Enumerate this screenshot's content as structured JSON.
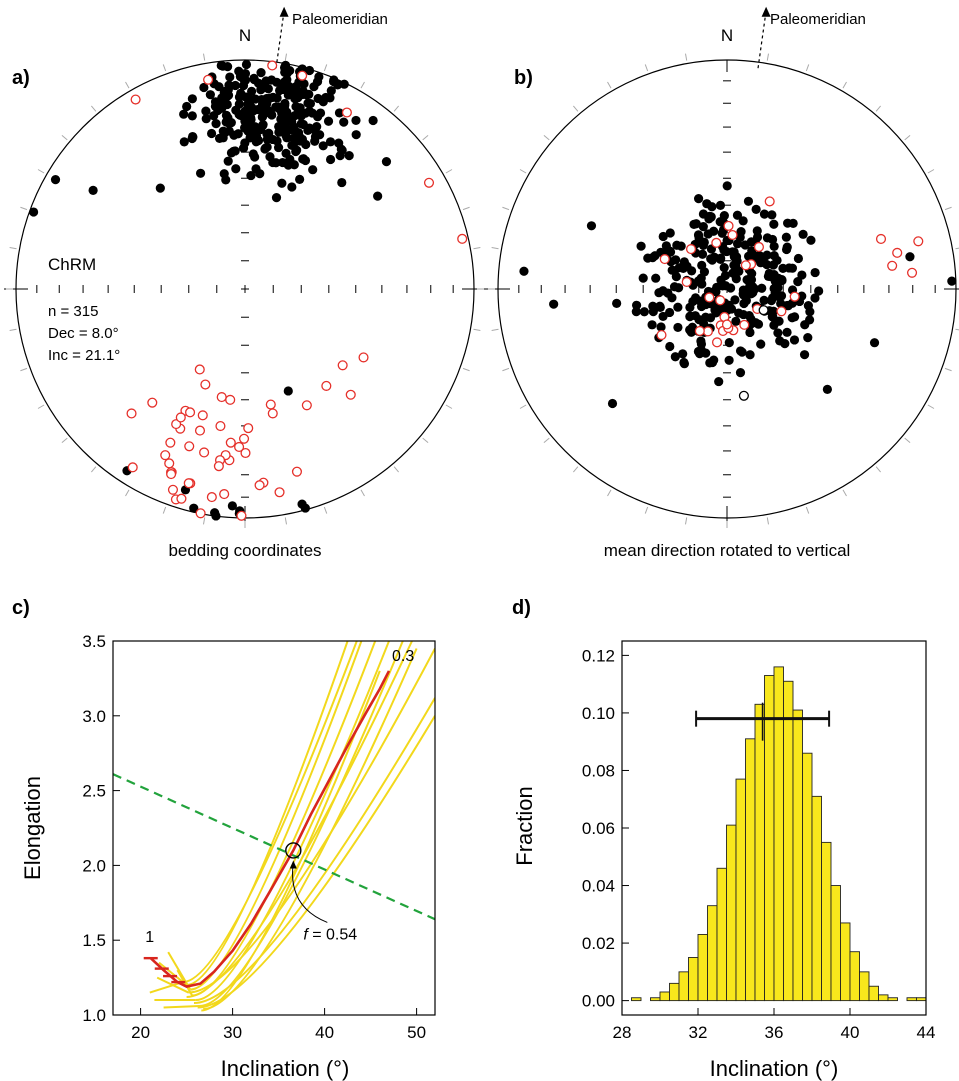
{
  "chart_data": [
    {
      "panel": "a)",
      "type": "scatter",
      "projection": "equal-area stereonet",
      "north_label": "N",
      "reference_label": "Paleomeridian",
      "caption": "bedding coordinates",
      "group_label": "ChRM",
      "stats": [
        "n = 315",
        "Dec = 8.0°",
        "Inc = 21.1°"
      ],
      "legend": "none",
      "series": [
        {
          "symbol": "filled",
          "color": "#000000",
          "cluster": {
            "dec": 8.0,
            "inc": 21.1,
            "n": 300,
            "seed": 11
          },
          "points": [
            {
              "dec": 300,
              "inc": 5
            },
            {
              "dec": 290,
              "inc": 2
            },
            {
              "dec": 303,
              "inc": 22
            },
            {
              "dec": 320,
              "inc": 42
            },
            {
              "dec": 339,
              "inc": 45
            },
            {
              "dec": 350,
              "inc": 50
            },
            {
              "dec": 48,
              "inc": 18
            },
            {
              "dec": 55,
              "inc": 30
            },
            {
              "dec": 157,
              "inc": 50
            },
            {
              "dec": 213,
              "inc": 6
            }
          ]
        },
        {
          "symbol": "open",
          "color": "#e5302a",
          "points": [
            {
              "dec": 60,
              "inc": 8
            },
            {
              "dec": 77,
              "inc": 3
            },
            {
              "dec": 330,
              "inc": 5
            },
            {
              "dec": 15,
              "inc": 4
            },
            {
              "dec": 350,
              "inc": 8
            },
            {
              "dec": 30,
              "inc": 12
            },
            {
              "dec": 120,
              "inc": 40
            },
            {
              "dec": 128,
              "inc": 45
            },
            {
              "dec": 135,
              "inc": 35
            },
            {
              "dec": 140,
              "inc": 44
            },
            {
              "dec": 152,
              "inc": 42
            }
          ],
          "cluster": {
            "dec": 190,
            "inc": 28,
            "n": 48,
            "seed": 23
          }
        }
      ]
    },
    {
      "panel": "b)",
      "type": "scatter",
      "projection": "equal-area stereonet",
      "north_label": "N",
      "reference_label": "Paleomeridian",
      "caption": "mean direction rotated to vertical",
      "legend": "none",
      "series": [
        {
          "symbol": "filled",
          "color": "#000000",
          "cluster": {
            "dec": 0,
            "inc": 90,
            "n": 300,
            "seed": 37
          },
          "points": [
            {
              "dec": 88,
              "inc": 2
            },
            {
              "dec": 80,
              "inc": 20
            },
            {
              "dec": 265,
              "inc": 25
            },
            {
              "dec": 295,
              "inc": 35
            },
            {
              "dec": 275,
              "inc": 12
            },
            {
              "dec": 110,
              "inc": 32
            },
            {
              "dec": 135,
              "inc": 38
            },
            {
              "dec": 225,
              "inc": 30
            }
          ]
        },
        {
          "symbol": "open",
          "color": "#e5302a",
          "points": [
            {
              "dec": 78,
              "inc": 25
            },
            {
              "dec": 72,
              "inc": 30
            },
            {
              "dec": 82,
              "inc": 28
            },
            {
              "dec": 76,
              "inc": 15
            },
            {
              "dec": 85,
              "inc": 20
            }
          ],
          "cluster": {
            "dec": 0,
            "inc": 90,
            "n": 26,
            "seed": 41
          }
        },
        {
          "symbol": "open",
          "color": "#000000",
          "points": [
            {
              "dec": 171,
              "inc": 51
            },
            {
              "dec": 120,
              "inc": 75
            }
          ]
        }
      ]
    },
    {
      "panel": "c)",
      "type": "line",
      "xlabel": "Inclination (°)",
      "ylabel": "Elongation",
      "xlim": [
        17,
        52
      ],
      "ylim": [
        1.0,
        3.5
      ],
      "xticks": [
        20,
        30,
        40,
        50
      ],
      "yticks": [
        1.0,
        1.5,
        2.0,
        2.5,
        3.0,
        3.5
      ],
      "legend": "none",
      "end_labels": {
        "start": "1",
        "end": "0.3"
      },
      "annotation": {
        "text_italic": "f",
        "text_rest": " = 0.54",
        "x": 36.6,
        "y": 2.1
      },
      "bootstrap_color": "#f2d81c",
      "bootstrap_curves": [
        {
          "bx": 25.0,
          "by": 1.2,
          "x1": 42.5,
          "y1": 3.5
        },
        {
          "bx": 25.4,
          "by": 1.17,
          "x1": 44.0,
          "y1": 3.5
        },
        {
          "bx": 25.6,
          "by": 1.13,
          "x1": 45.5,
          "y1": 3.5
        },
        {
          "bx": 26.0,
          "by": 1.1,
          "x1": 47.0,
          "y1": 3.5
        },
        {
          "bx": 26.4,
          "by": 1.06,
          "x1": 48.5,
          "y1": 3.5
        },
        {
          "bx": 26.8,
          "by": 1.04,
          "x1": 50.0,
          "y1": 3.45
        },
        {
          "bx": 25.2,
          "by": 1.15,
          "x1": 52.0,
          "y1": 3.45
        },
        {
          "bx": 25.8,
          "by": 1.08,
          "x1": 52.0,
          "y1": 3.12
        },
        {
          "bx": 26.2,
          "by": 1.05,
          "x1": 52.0,
          "y1": 3.0
        },
        {
          "bx": 24.6,
          "by": 1.22,
          "x1": 43.5,
          "y1": 3.5
        },
        {
          "bx": 26.6,
          "by": 1.03,
          "x1": 46.0,
          "y1": 3.3
        },
        {
          "bx": 25.0,
          "by": 1.12,
          "x1": 49.5,
          "y1": 3.5
        }
      ],
      "start_stubs": [
        {
          "x0": 21.0,
          "y0": 1.15,
          "x1": 24.6,
          "y1": 1.22
        },
        {
          "x0": 22.0,
          "y0": 1.35,
          "x1": 25.0,
          "y1": 1.2
        },
        {
          "x0": 21.5,
          "y0": 1.1,
          "x1": 26.0,
          "y1": 1.1
        },
        {
          "x0": 23.0,
          "y0": 1.42,
          "x1": 25.4,
          "y1": 1.17
        },
        {
          "x0": 22.5,
          "y0": 1.05,
          "x1": 26.4,
          "y1": 1.06
        },
        {
          "x0": 24.0,
          "y0": 1.3,
          "x1": 25.6,
          "y1": 1.13
        },
        {
          "x0": 21.8,
          "y0": 1.25,
          "x1": 25.2,
          "y1": 1.15
        }
      ],
      "series": [
        {
          "role": "data",
          "color": "#d8261e",
          "x": [
            21.1,
            22.5,
            24.0,
            25.0,
            26.5,
            28.0,
            30.0,
            32.0,
            34.0,
            36.6,
            38.5,
            40.5,
            42.5,
            44.5,
            46.0,
            47.0
          ],
          "y": [
            1.38,
            1.3,
            1.22,
            1.19,
            1.21,
            1.29,
            1.43,
            1.61,
            1.82,
            2.1,
            2.34,
            2.57,
            2.8,
            3.02,
            3.18,
            3.3
          ]
        },
        {
          "role": "model",
          "style": "dashed",
          "color": "#22a33c",
          "x": [
            17,
            52
          ],
          "y": [
            2.61,
            1.64
          ]
        }
      ],
      "ticks_on_data": [
        {
          "x": 21.1,
          "y": 1.38
        },
        {
          "x": 22.3,
          "y": 1.31
        },
        {
          "x": 23.2,
          "y": 1.26
        },
        {
          "x": 24.1,
          "y": 1.22
        }
      ]
    },
    {
      "panel": "d)",
      "type": "bar",
      "style": "histogram",
      "xlabel": "Inclination (°)",
      "ylabel": "Fraction",
      "xlim": [
        28,
        44
      ],
      "ylim": [
        -0.005,
        0.125
      ],
      "xticks": [
        28,
        32,
        36,
        40,
        44
      ],
      "yticks": [
        0.0,
        0.02,
        0.04,
        0.06,
        0.08,
        0.1,
        0.12
      ],
      "ytick_labels": [
        "0.00",
        "0.02",
        "0.04",
        "0.06",
        "0.08",
        "0.10",
        "0.12"
      ],
      "legend": "none",
      "bar_color": "#f8e71c",
      "bin_width": 0.5,
      "bins_start": [
        28.5,
        29.0,
        29.5,
        30.0,
        30.5,
        31.0,
        31.5,
        32.0,
        32.5,
        33.0,
        33.5,
        34.0,
        34.5,
        35.0,
        35.5,
        36.0,
        36.5,
        37.0,
        37.5,
        38.0,
        38.5,
        39.0,
        39.5,
        40.0,
        40.5,
        41.0,
        41.5,
        42.0,
        42.5,
        43.0,
        43.5
      ],
      "values": [
        0.001,
        0.0,
        0.001,
        0.003,
        0.006,
        0.01,
        0.015,
        0.023,
        0.033,
        0.046,
        0.061,
        0.077,
        0.091,
        0.103,
        0.113,
        0.116,
        0.111,
        0.101,
        0.086,
        0.071,
        0.055,
        0.04,
        0.027,
        0.017,
        0.01,
        0.005,
        0.002,
        0.001,
        0.0,
        0.001,
        0.001
      ],
      "error_bar": {
        "mean": 35.4,
        "low": 31.9,
        "high": 38.9,
        "y": 0.098
      }
    }
  ]
}
